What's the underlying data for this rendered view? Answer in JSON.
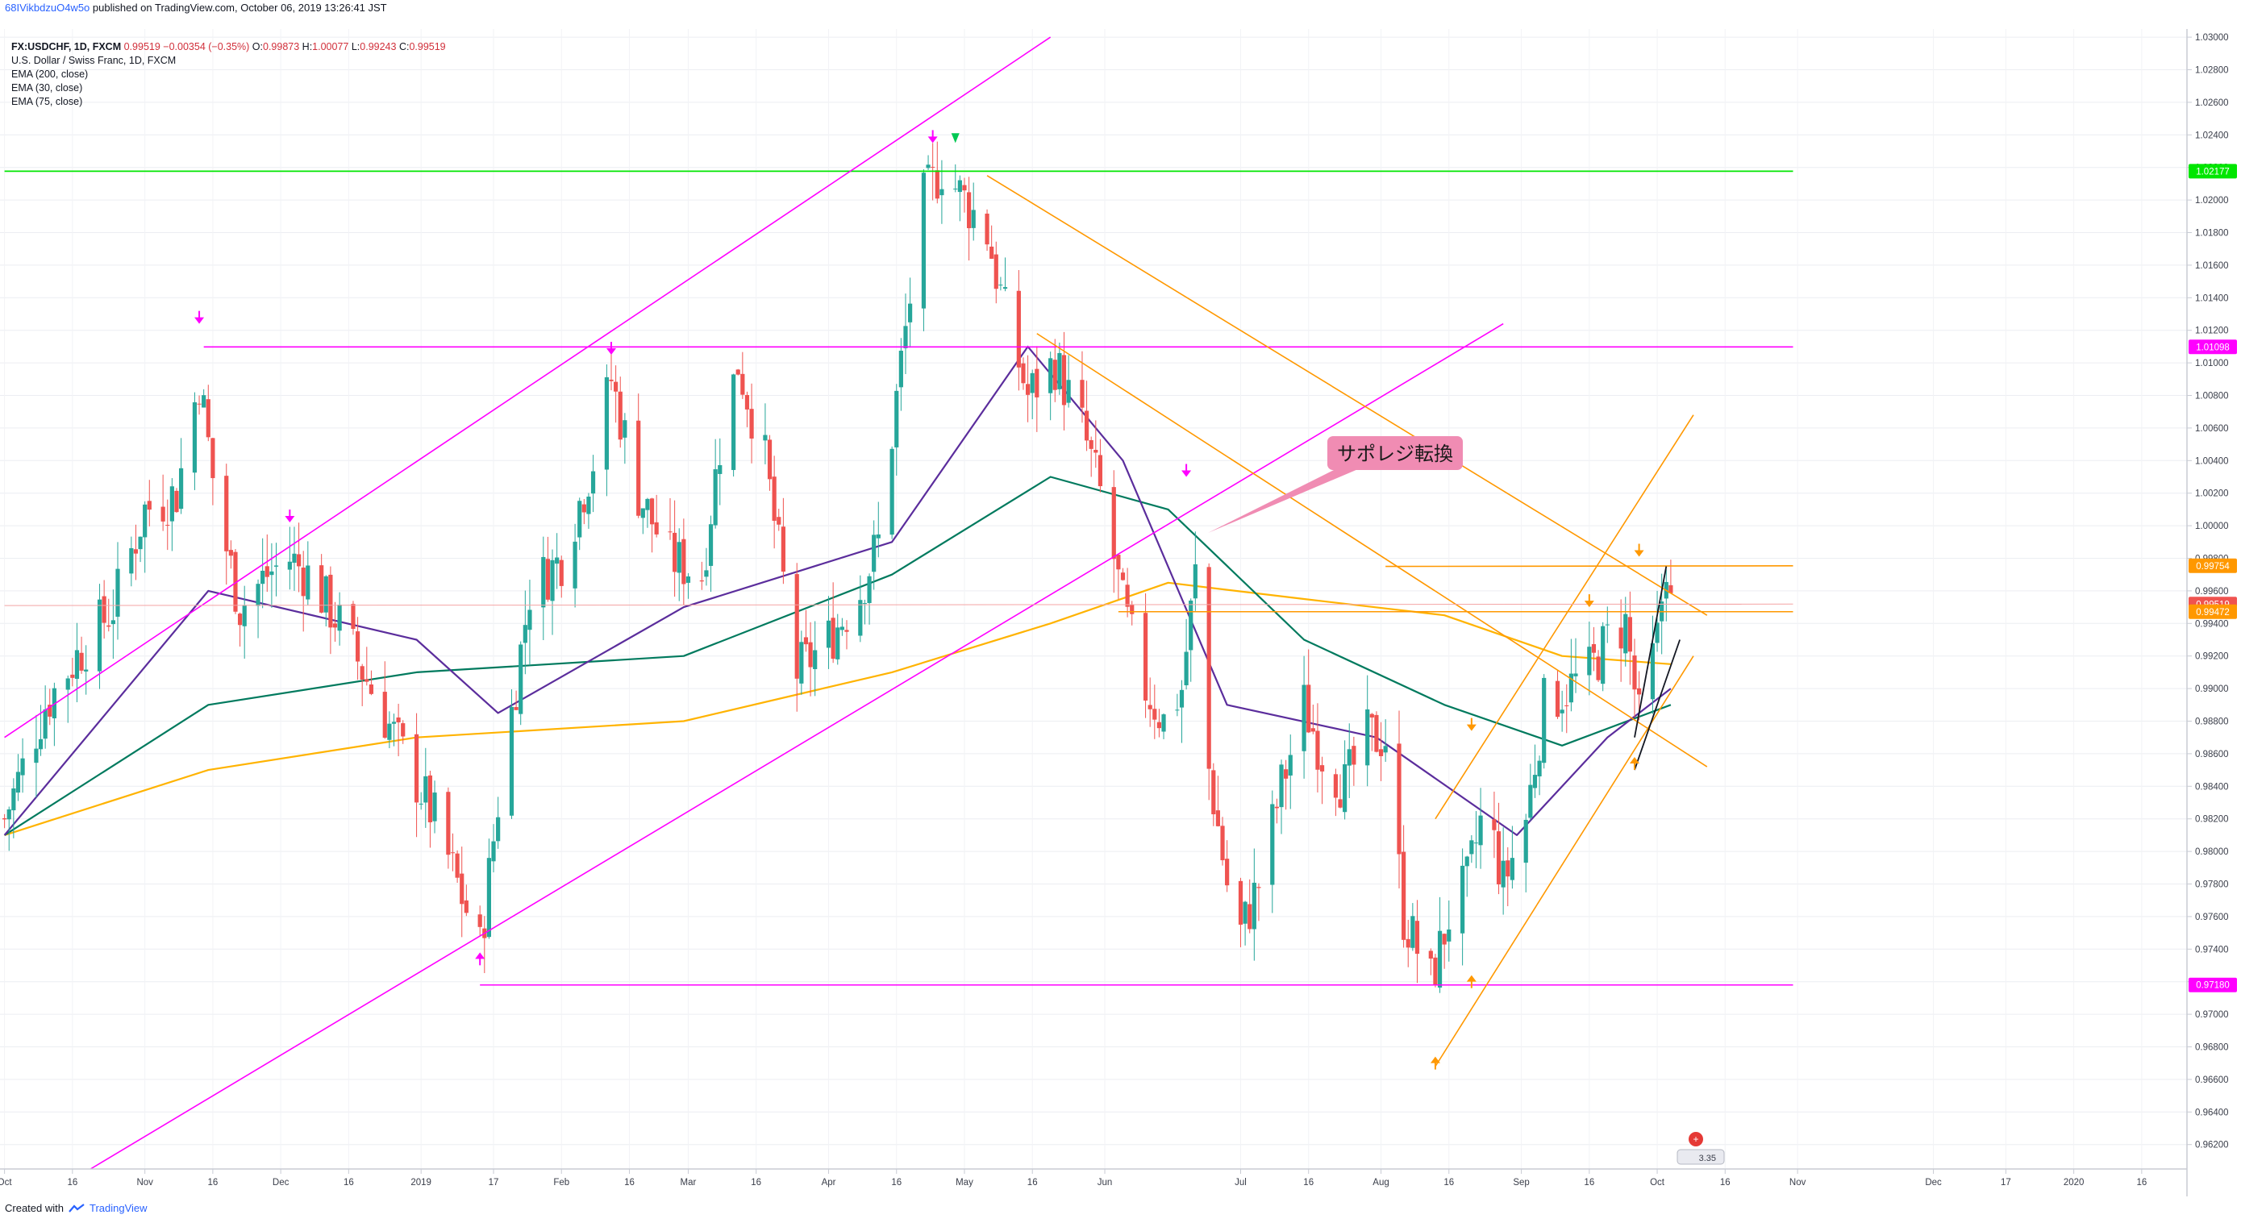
{
  "header": {
    "author": "68IVikbdzuO4w5o",
    "published_text": "published on TradingView.com, October 06, 2019 13:26:41 JST"
  },
  "legend": {
    "symbol": "FX:USDCHF, 1D, FXCM",
    "close": "0.99519",
    "change": "−0.00354 (−0.35%)",
    "open_label": "O:",
    "open": "0.99873",
    "high_label": "H:",
    "high": "1.00077",
    "low_label": "L:",
    "low": "0.99243",
    "close_label": "C:",
    "close_value": "0.99519",
    "title": "U.S. Dollar / Swiss Franc, 1D, FXCM",
    "indicators": [
      "EMA (200, close)",
      "EMA (30, close)",
      "EMA (75, close)"
    ]
  },
  "annotation": {
    "text": "サポレジ転換"
  },
  "badge": {
    "text": "3.35"
  },
  "footer": {
    "text": "Created with",
    "brand": "TradingView"
  },
  "colors": {
    "up": "#26a69a",
    "down": "#ef5350",
    "magenta": "#ff00ff",
    "orange": "#ff9800",
    "green": "#00e600",
    "ema200": "#ffb300",
    "ema30": "#5b2d9c",
    "ema75": "#007a5e"
  },
  "chart_data": {
    "type": "candlestick",
    "ylim": [
      0.9605,
      1.0305
    ],
    "y_ticks": [
      "1.03000",
      "1.02800",
      "1.02600",
      "1.02400",
      "1.02200",
      "1.02000",
      "1.01800",
      "1.01600",
      "1.01400",
      "1.01200",
      "1.01000",
      "1.00800",
      "1.00600",
      "1.00400",
      "1.00200",
      "1.00000",
      "0.99800",
      "0.99600",
      "0.99400",
      "0.99200",
      "0.99000",
      "0.98800",
      "0.98600",
      "0.98400",
      "0.98200",
      "0.98000",
      "0.97800",
      "0.97600",
      "0.97400",
      "0.97200",
      "0.97000",
      "0.96800",
      "0.96600",
      "0.96400",
      "0.96200"
    ],
    "x_labels": [
      "Oct",
      "16",
      "Nov",
      "16",
      "Dec",
      "16",
      "2019",
      "17",
      "Feb",
      "16",
      "Mar",
      "16",
      "Apr",
      "16",
      "May",
      "16",
      "Jun",
      "Jul",
      "16",
      "Aug",
      "16",
      "Sep",
      "16",
      "Oct",
      "16",
      "Nov",
      "Dec",
      "17",
      "2020",
      "16"
    ],
    "price_levels": [
      {
        "value": "1.02177",
        "color": "#00e600"
      },
      {
        "value": "1.01098",
        "color": "#ff00ff"
      },
      {
        "value": "0.99754",
        "color": "#ff9800"
      },
      {
        "value": "0.99519",
        "color": "#ef5350"
      },
      {
        "value": "0.99472",
        "color": "#ff9800"
      },
      {
        "value": "0.97180",
        "color": "#ff00ff"
      }
    ],
    "anchors": [
      [
        "2018-10-01",
        0.982
      ],
      [
        "2018-10-10",
        0.989
      ],
      [
        "2018-10-17",
        0.992
      ],
      [
        "2018-10-25",
        0.995
      ],
      [
        "2018-11-01",
        1.001
      ],
      [
        "2018-11-08",
        1.002
      ],
      [
        "2018-11-13",
        1.009
      ],
      [
        "2018-11-17",
        1.001
      ],
      [
        "2018-11-22",
        0.995
      ],
      [
        "2018-11-28",
        0.997
      ],
      [
        "2018-12-03",
        0.998
      ],
      [
        "2018-12-07",
        0.997
      ],
      [
        "2018-12-14",
        0.994
      ],
      [
        "2018-12-21",
        0.99
      ],
      [
        "2018-12-28",
        0.986
      ],
      [
        "2019-01-04",
        0.982
      ],
      [
        "2019-01-14",
        0.974
      ],
      [
        "2019-01-18",
        0.983
      ],
      [
        "2019-01-25",
        0.996
      ],
      [
        "2019-02-01",
        0.998
      ],
      [
        "2019-02-08",
        1.004
      ],
      [
        "2019-02-12",
        1.009
      ],
      [
        "2019-02-18",
        1.002
      ],
      [
        "2019-02-25",
        0.998
      ],
      [
        "2019-03-04",
        0.997
      ],
      [
        "2019-03-08",
        1.005
      ],
      [
        "2019-03-12",
        1.01
      ],
      [
        "2019-03-18",
        1.004
      ],
      [
        "2019-03-25",
        0.991
      ],
      [
        "2019-04-01",
        0.993
      ],
      [
        "2019-04-08",
        0.996
      ],
      [
        "2019-04-12",
        0.999
      ],
      [
        "2019-04-17",
        1.01
      ],
      [
        "2019-04-22",
        1.02
      ],
      [
        "2019-04-26",
        1.022
      ],
      [
        "2019-05-01",
        1.02
      ],
      [
        "2019-05-06",
        1.018
      ],
      [
        "2019-05-10",
        1.013
      ],
      [
        "2019-05-15",
        1.008
      ],
      [
        "2019-05-21",
        1.01
      ],
      [
        "2019-05-27",
        1.006
      ],
      [
        "2019-06-01",
        1.001
      ],
      [
        "2019-06-05",
        0.995
      ],
      [
        "2019-06-10",
        0.99
      ],
      [
        "2019-06-14",
        0.988
      ],
      [
        "2019-06-18",
        0.99
      ],
      [
        "2019-06-21",
        0.997
      ],
      [
        "2019-06-24",
        0.985
      ],
      [
        "2019-06-28",
        0.978
      ],
      [
        "2019-07-01",
        0.975
      ],
      [
        "2019-07-05",
        0.978
      ],
      [
        "2019-07-10",
        0.984
      ],
      [
        "2019-07-15",
        0.989
      ],
      [
        "2019-07-19",
        0.986
      ],
      [
        "2019-07-24",
        0.984
      ],
      [
        "2019-07-29",
        0.987
      ],
      [
        "2019-08-02",
        0.987
      ],
      [
        "2019-08-06",
        0.976
      ],
      [
        "2019-08-12",
        0.972
      ],
      [
        "2019-08-16",
        0.976
      ],
      [
        "2019-08-20",
        0.978
      ],
      [
        "2019-08-24",
        0.983
      ],
      [
        "2019-08-28",
        0.978
      ],
      [
        "2019-09-02",
        0.982
      ],
      [
        "2019-09-06",
        0.989
      ],
      [
        "2019-09-11",
        0.99
      ],
      [
        "2019-09-16",
        0.991
      ],
      [
        "2019-09-20",
        0.993
      ],
      [
        "2019-09-24",
        0.994
      ],
      [
        "2019-09-27",
        0.988
      ],
      [
        "2019-10-01",
        0.993
      ],
      [
        "2019-10-03",
        0.998
      ],
      [
        "2019-10-04",
        0.995
      ]
    ],
    "ema200": [
      [
        "2018-10-01",
        0.981
      ],
      [
        "2018-11-15",
        0.985
      ],
      [
        "2018-12-31",
        0.987
      ],
      [
        "2019-02-28",
        0.988
      ],
      [
        "2019-04-15",
        0.991
      ],
      [
        "2019-05-20",
        0.994
      ],
      [
        "2019-06-15",
        0.9965
      ],
      [
        "2019-07-15",
        0.9955
      ],
      [
        "2019-08-15",
        0.9945
      ],
      [
        "2019-09-10",
        0.992
      ],
      [
        "2019-10-04",
        0.9915
      ]
    ],
    "ema75": [
      [
        "2018-10-01",
        0.981
      ],
      [
        "2018-11-15",
        0.989
      ],
      [
        "2018-12-31",
        0.991
      ],
      [
        "2019-02-28",
        0.992
      ],
      [
        "2019-04-15",
        0.997
      ],
      [
        "2019-05-20",
        1.003
      ],
      [
        "2019-06-15",
        1.001
      ],
      [
        "2019-07-15",
        0.993
      ],
      [
        "2019-08-15",
        0.989
      ],
      [
        "2019-09-10",
        0.9865
      ],
      [
        "2019-10-04",
        0.989
      ]
    ],
    "ema30": [
      [
        "2018-10-01",
        0.981
      ],
      [
        "2018-11-15",
        0.996
      ],
      [
        "2018-12-31",
        0.993
      ],
      [
        "2019-01-18",
        0.9885
      ],
      [
        "2019-02-28",
        0.995
      ],
      [
        "2019-04-15",
        0.999
      ],
      [
        "2019-05-15",
        1.011
      ],
      [
        "2019-06-05",
        1.004
      ],
      [
        "2019-06-28",
        0.989
      ],
      [
        "2019-07-31",
        0.987
      ],
      [
        "2019-08-31",
        0.981
      ],
      [
        "2019-09-20",
        0.987
      ],
      [
        "2019-10-04",
        0.99
      ]
    ]
  }
}
